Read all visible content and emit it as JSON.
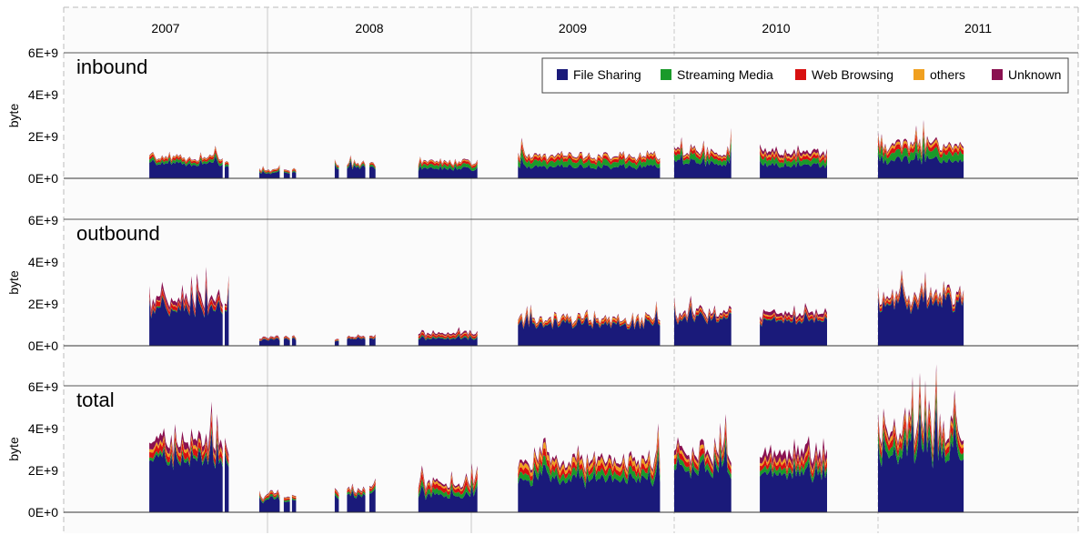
{
  "chart_data": {
    "type": "area",
    "stacked": true,
    "years": [
      "2007",
      "2008",
      "2009",
      "2010",
      "2011"
    ],
    "ylabel": "byte",
    "yticks": [
      "0E+0",
      "2E+9",
      "4E+9",
      "6E+9"
    ],
    "ylim": [
      0,
      6000000000
    ],
    "legend": {
      "placement": "top-right",
      "entries": [
        {
          "name": "File Sharing",
          "color": "#1a1a7a"
        },
        {
          "name": "Streaming Media",
          "color": "#1a9a2a"
        },
        {
          "name": "Web Browsing",
          "color": "#d81010"
        },
        {
          "name": "others",
          "color": "#f0a020"
        },
        {
          "name": "Unknown",
          "color": "#8a1050"
        }
      ]
    },
    "grid": "vertical lines at year boundaries",
    "segments": [
      {
        "start": 2007.42,
        "end": 2007.78
      },
      {
        "start": 2007.79,
        "end": 2007.81
      },
      {
        "start": 2007.96,
        "end": 2008.06
      },
      {
        "start": 2008.08,
        "end": 2008.11
      },
      {
        "start": 2008.12,
        "end": 2008.14
      },
      {
        "start": 2008.33,
        "end": 2008.35
      },
      {
        "start": 2008.39,
        "end": 2008.48
      },
      {
        "start": 2008.5,
        "end": 2008.53
      },
      {
        "start": 2008.74,
        "end": 2009.03
      },
      {
        "start": 2009.23,
        "end": 2009.93
      },
      {
        "start": 2010.0,
        "end": 2010.28
      },
      {
        "start": 2010.42,
        "end": 2010.75
      },
      {
        "start": 2011.0,
        "end": 2011.42
      }
    ],
    "panels": [
      {
        "title": "inbound",
        "segments": [
          {
            "file_sharing": 0.7,
            "streaming_media": 0.12,
            "web_browsing": 0.1,
            "others": 0.05,
            "unknown": 0.03
          },
          {
            "file_sharing": 0.6,
            "streaming_media": 0.1,
            "web_browsing": 0.08,
            "others": 0.04,
            "unknown": 0.02
          },
          {
            "file_sharing": 0.25,
            "streaming_media": 0.05,
            "web_browsing": 0.05,
            "others": 0.03,
            "unknown": 0.02
          },
          {
            "file_sharing": 0.3,
            "streaming_media": 0.05,
            "web_browsing": 0.05,
            "others": 0.03,
            "unknown": 0.02
          },
          {
            "file_sharing": 0.3,
            "streaming_media": 0.05,
            "web_browsing": 0.05,
            "others": 0.03,
            "unknown": 0.02
          },
          {
            "file_sharing": 0.5,
            "streaming_media": 0.08,
            "web_browsing": 0.06,
            "others": 0.03,
            "unknown": 0.02
          },
          {
            "file_sharing": 0.55,
            "streaming_media": 0.08,
            "web_browsing": 0.06,
            "others": 0.03,
            "unknown": 0.02
          },
          {
            "file_sharing": 0.5,
            "streaming_media": 0.08,
            "web_browsing": 0.06,
            "others": 0.03,
            "unknown": 0.02
          },
          {
            "file_sharing": 0.45,
            "streaming_media": 0.15,
            "web_browsing": 0.1,
            "others": 0.05,
            "unknown": 0.03
          },
          {
            "file_sharing": 0.55,
            "streaming_media": 0.25,
            "web_browsing": 0.15,
            "others": 0.08,
            "unknown": 0.05
          },
          {
            "file_sharing": 0.75,
            "streaming_media": 0.25,
            "web_browsing": 0.15,
            "others": 0.08,
            "unknown": 0.07
          },
          {
            "file_sharing": 0.65,
            "streaming_media": 0.25,
            "web_browsing": 0.15,
            "others": 0.1,
            "unknown": 0.15
          },
          {
            "file_sharing": 0.85,
            "streaming_media": 0.35,
            "web_browsing": 0.2,
            "others": 0.12,
            "unknown": 0.08
          }
        ]
      },
      {
        "title": "outbound",
        "segments": [
          {
            "file_sharing": 1.8,
            "streaming_media": 0.05,
            "web_browsing": 0.2,
            "others": 0.05,
            "unknown": 0.2
          },
          {
            "file_sharing": 1.7,
            "streaming_media": 0.05,
            "web_browsing": 0.15,
            "others": 0.05,
            "unknown": 0.1
          },
          {
            "file_sharing": 0.3,
            "streaming_media": 0.02,
            "web_browsing": 0.05,
            "others": 0.02,
            "unknown": 0.03
          },
          {
            "file_sharing": 0.3,
            "streaming_media": 0.02,
            "web_browsing": 0.04,
            "others": 0.02,
            "unknown": 0.02
          },
          {
            "file_sharing": 0.3,
            "streaming_media": 0.02,
            "web_browsing": 0.04,
            "others": 0.02,
            "unknown": 0.02
          },
          {
            "file_sharing": 0.25,
            "streaming_media": 0.02,
            "web_browsing": 0.04,
            "others": 0.02,
            "unknown": 0.02
          },
          {
            "file_sharing": 0.35,
            "streaming_media": 0.02,
            "web_browsing": 0.05,
            "others": 0.02,
            "unknown": 0.03
          },
          {
            "file_sharing": 0.35,
            "streaming_media": 0.02,
            "web_browsing": 0.05,
            "others": 0.02,
            "unknown": 0.03
          },
          {
            "file_sharing": 0.35,
            "streaming_media": 0.05,
            "web_browsing": 0.1,
            "others": 0.04,
            "unknown": 0.08
          },
          {
            "file_sharing": 1.05,
            "streaming_media": 0.04,
            "web_browsing": 0.1,
            "others": 0.08,
            "unknown": 0.05
          },
          {
            "file_sharing": 1.3,
            "streaming_media": 0.04,
            "web_browsing": 0.1,
            "others": 0.06,
            "unknown": 0.1
          },
          {
            "file_sharing": 1.2,
            "streaming_media": 0.04,
            "web_browsing": 0.12,
            "others": 0.06,
            "unknown": 0.15
          },
          {
            "file_sharing": 2.0,
            "streaming_media": 0.05,
            "web_browsing": 0.15,
            "others": 0.1,
            "unknown": 0.1
          }
        ]
      },
      {
        "title": "total",
        "segments": [
          {
            "file_sharing": 2.5,
            "streaming_media": 0.15,
            "web_browsing": 0.3,
            "others": 0.15,
            "unknown": 0.3
          },
          {
            "file_sharing": 2.3,
            "streaming_media": 0.15,
            "web_browsing": 0.25,
            "others": 0.1,
            "unknown": 0.2
          },
          {
            "file_sharing": 0.6,
            "streaming_media": 0.08,
            "web_browsing": 0.08,
            "others": 0.05,
            "unknown": 0.04
          },
          {
            "file_sharing": 0.6,
            "streaming_media": 0.08,
            "web_browsing": 0.08,
            "others": 0.05,
            "unknown": 0.04
          },
          {
            "file_sharing": 0.6,
            "streaming_media": 0.08,
            "web_browsing": 0.08,
            "others": 0.05,
            "unknown": 0.04
          },
          {
            "file_sharing": 0.75,
            "streaming_media": 0.1,
            "web_browsing": 0.1,
            "others": 0.05,
            "unknown": 0.05
          },
          {
            "file_sharing": 0.85,
            "streaming_media": 0.1,
            "web_browsing": 0.1,
            "others": 0.05,
            "unknown": 0.05
          },
          {
            "file_sharing": 0.8,
            "streaming_media": 0.1,
            "web_browsing": 0.1,
            "others": 0.05,
            "unknown": 0.05
          },
          {
            "file_sharing": 0.8,
            "streaming_media": 0.2,
            "web_browsing": 0.2,
            "others": 0.1,
            "unknown": 0.1
          },
          {
            "file_sharing": 1.6,
            "streaming_media": 0.3,
            "web_browsing": 0.25,
            "others": 0.2,
            "unknown": 0.15
          },
          {
            "file_sharing": 2.05,
            "streaming_media": 0.25,
            "web_browsing": 0.25,
            "others": 0.15,
            "unknown": 0.2
          },
          {
            "file_sharing": 1.85,
            "streaming_media": 0.25,
            "web_browsing": 0.25,
            "others": 0.15,
            "unknown": 0.35
          },
          {
            "file_sharing": 2.85,
            "streaming_media": 0.4,
            "web_browsing": 0.35,
            "others": 0.2,
            "unknown": 0.2
          }
        ]
      }
    ]
  }
}
